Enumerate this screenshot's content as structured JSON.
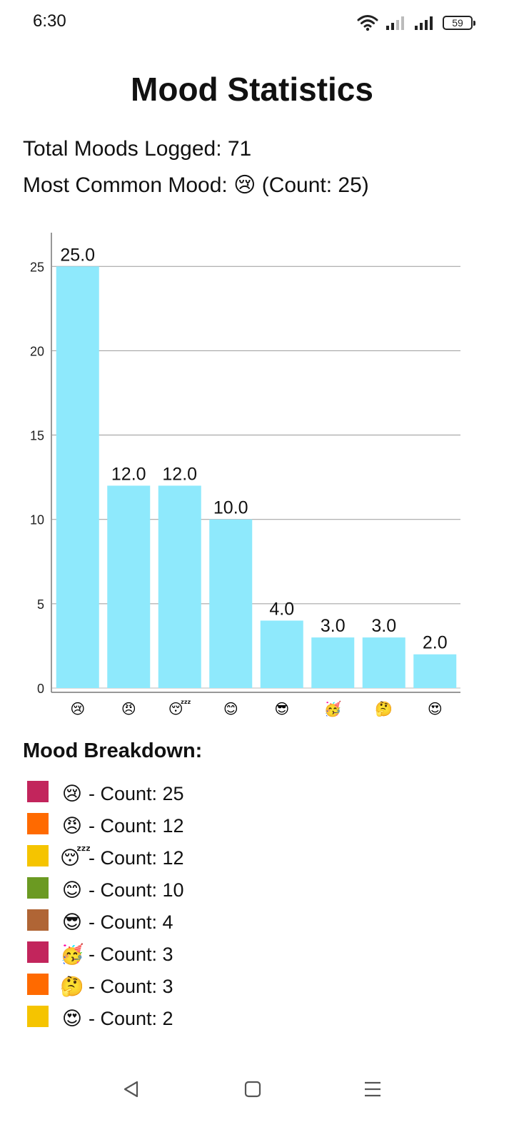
{
  "status_bar": {
    "time": "6:30",
    "battery_level": "59",
    "icons": [
      "wifi-icon",
      "signal-weak-icon",
      "signal-strong-icon",
      "battery-icon"
    ]
  },
  "page": {
    "title": "Mood Statistics",
    "total_moods_text": "Total Moods Logged: 71",
    "most_common_label": "Most Common Mood: ",
    "most_common_emoji": "😢",
    "most_common_count_text": " (Count: 25)"
  },
  "chart_data": {
    "type": "bar",
    "categories": [
      "😢",
      "😠",
      "😴",
      "😊",
      "😎",
      "🥳",
      "🤔",
      "😍"
    ],
    "values": [
      25,
      12,
      12,
      10,
      4,
      3,
      3,
      2
    ],
    "value_labels": [
      "25.0",
      "12.0",
      "12.0",
      "10.0",
      "4.0",
      "3.0",
      "3.0",
      "2.0"
    ],
    "ylim": [
      0,
      27
    ],
    "yticks": [
      "0",
      "5",
      "10",
      "15",
      "20",
      "25"
    ],
    "ytick_values": [
      0,
      5,
      10,
      15,
      20,
      25
    ],
    "bar_color": "#8ee9fc",
    "grid": true,
    "title": "",
    "xlabel": "",
    "ylabel": ""
  },
  "breakdown": {
    "title": "Mood Breakdown:",
    "items": [
      {
        "emoji": "😢",
        "text": "- Count: 25",
        "color": "#c2255c"
      },
      {
        "emoji": "😠",
        "text": "- Count: 12",
        "color": "#ff6a00"
      },
      {
        "emoji": "😴",
        "text": "- Count: 12",
        "color": "#f5c400"
      },
      {
        "emoji": "😊",
        "text": "- Count: 10",
        "color": "#6b9a22"
      },
      {
        "emoji": "😎",
        "text": "- Count: 4",
        "color": "#b06535"
      },
      {
        "emoji": "🥳",
        "text": "- Count: 3",
        "color": "#c2255c"
      },
      {
        "emoji": "🤔",
        "text": "- Count: 3",
        "color": "#ff6a00"
      },
      {
        "emoji": "😍",
        "text": "- Count: 2",
        "color": "#f5c400"
      }
    ]
  },
  "nav_bar": {
    "icons": [
      "back-triangle-icon",
      "home-square-icon",
      "menu-lines-icon"
    ]
  }
}
